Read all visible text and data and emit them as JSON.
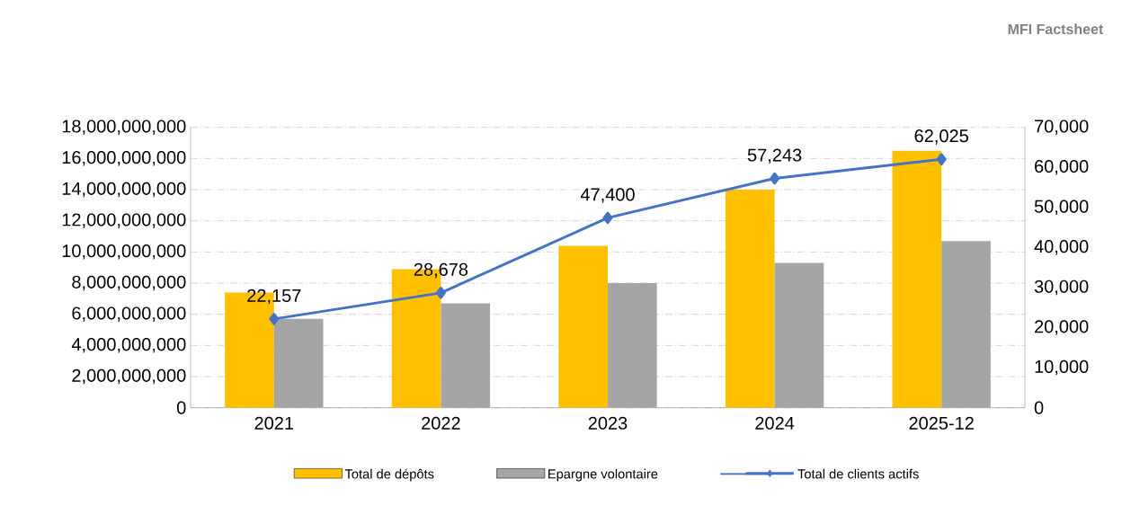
{
  "chart_data": {
    "type": "bar",
    "categories": [
      "2021",
      "2022",
      "2023",
      "2024",
      "2025-12"
    ],
    "series": [
      {
        "name": "Total de dépôts",
        "color": "#ffc000",
        "values": [
          7400000000,
          8900000000,
          10400000000,
          14000000000,
          16500000000
        ]
      },
      {
        "name": "Epargne volontaire",
        "color": "#a5a5a5",
        "values": [
          5700000000,
          6700000000,
          8000000000,
          9300000000,
          10700000000
        ]
      },
      {
        "name": "Total de clients actifs",
        "type": "line",
        "axis": "y2",
        "color": "#4472c4",
        "marker": "diamond",
        "values": [
          22157,
          28678,
          47400,
          57243,
          62025
        ],
        "value_labels": [
          "22,157",
          "28,678",
          "47,400",
          "57,243",
          "62,025"
        ]
      }
    ],
    "ylim": [
      0,
      18000000000
    ],
    "yticks": [
      {
        "value": 0,
        "label": "0"
      },
      {
        "value": 2000000000,
        "label": "2,000,000,000"
      },
      {
        "value": 4000000000,
        "label": "4,000,000,000"
      },
      {
        "value": 6000000000,
        "label": "6,000,000,000"
      },
      {
        "value": 8000000000,
        "label": "8,000,000,000"
      },
      {
        "value": 10000000000,
        "label": "10,000,000,000"
      },
      {
        "value": 12000000000,
        "label": "12,000,000,000"
      },
      {
        "value": 14000000000,
        "label": "14,000,000,000"
      },
      {
        "value": 16000000000,
        "label": "16,000,000,000"
      },
      {
        "value": 18000000000,
        "label": "18,000,000,000"
      }
    ],
    "y2lim": [
      0,
      70000
    ],
    "y2ticks": [
      {
        "value": 0,
        "label": "0"
      },
      {
        "value": 10000,
        "label": "10,000"
      },
      {
        "value": 20000,
        "label": "20,000"
      },
      {
        "value": 30000,
        "label": "30,000"
      },
      {
        "value": 40000,
        "label": "40,000"
      },
      {
        "value": 50000,
        "label": "50,000"
      },
      {
        "value": 60000,
        "label": "60,000"
      },
      {
        "value": 70000,
        "label": "70,000"
      }
    ],
    "grid": "y",
    "legend": "bottom",
    "annotations": [
      "MFI Factsheet"
    ]
  }
}
